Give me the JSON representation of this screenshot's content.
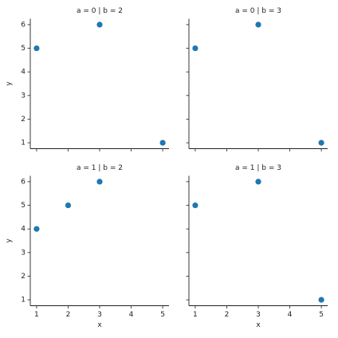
{
  "chart_data": [
    {
      "type": "scatter",
      "title": "a = 0 | b = 2",
      "ylabel": "y",
      "x": [
        1,
        3,
        5
      ],
      "values": [
        5,
        6,
        1
      ],
      "color": "#1f77b4",
      "xlim": [
        0.8,
        5.2
      ],
      "ylim": [
        0.75,
        6.25
      ],
      "xticks": [
        1,
        2,
        3,
        4,
        5
      ],
      "yticks": [
        1,
        2,
        3,
        4,
        5,
        6
      ]
    },
    {
      "type": "scatter",
      "title": "a = 0 | b = 3",
      "x": [
        1,
        3,
        5
      ],
      "values": [
        5,
        6,
        1
      ],
      "color": "#1f77b4",
      "xlim": [
        0.8,
        5.2
      ],
      "ylim": [
        0.75,
        6.25
      ],
      "xticks": [
        1,
        2,
        3,
        4,
        5
      ],
      "yticks": [
        1,
        2,
        3,
        4,
        5,
        6
      ]
    },
    {
      "type": "scatter",
      "title": "a = 1 | b = 2",
      "xlabel": "x",
      "ylabel": "y",
      "x": [
        1,
        2,
        3
      ],
      "values": [
        4,
        5,
        6
      ],
      "color": "#1f77b4",
      "xlim": [
        0.8,
        5.2
      ],
      "ylim": [
        0.75,
        6.25
      ],
      "xticks": [
        1,
        2,
        3,
        4,
        5
      ],
      "yticks": [
        1,
        2,
        3,
        4,
        5,
        6
      ]
    },
    {
      "type": "scatter",
      "title": "a = 1 | b = 3",
      "xlabel": "x",
      "x": [
        1,
        3,
        5
      ],
      "values": [
        5,
        6,
        1
      ],
      "color": "#1f77b4",
      "xlim": [
        0.8,
        5.2
      ],
      "ylim": [
        0.75,
        6.25
      ],
      "xticks": [
        1,
        2,
        3,
        4,
        5
      ],
      "yticks": [
        1,
        2,
        3,
        4,
        5,
        6
      ]
    }
  ]
}
